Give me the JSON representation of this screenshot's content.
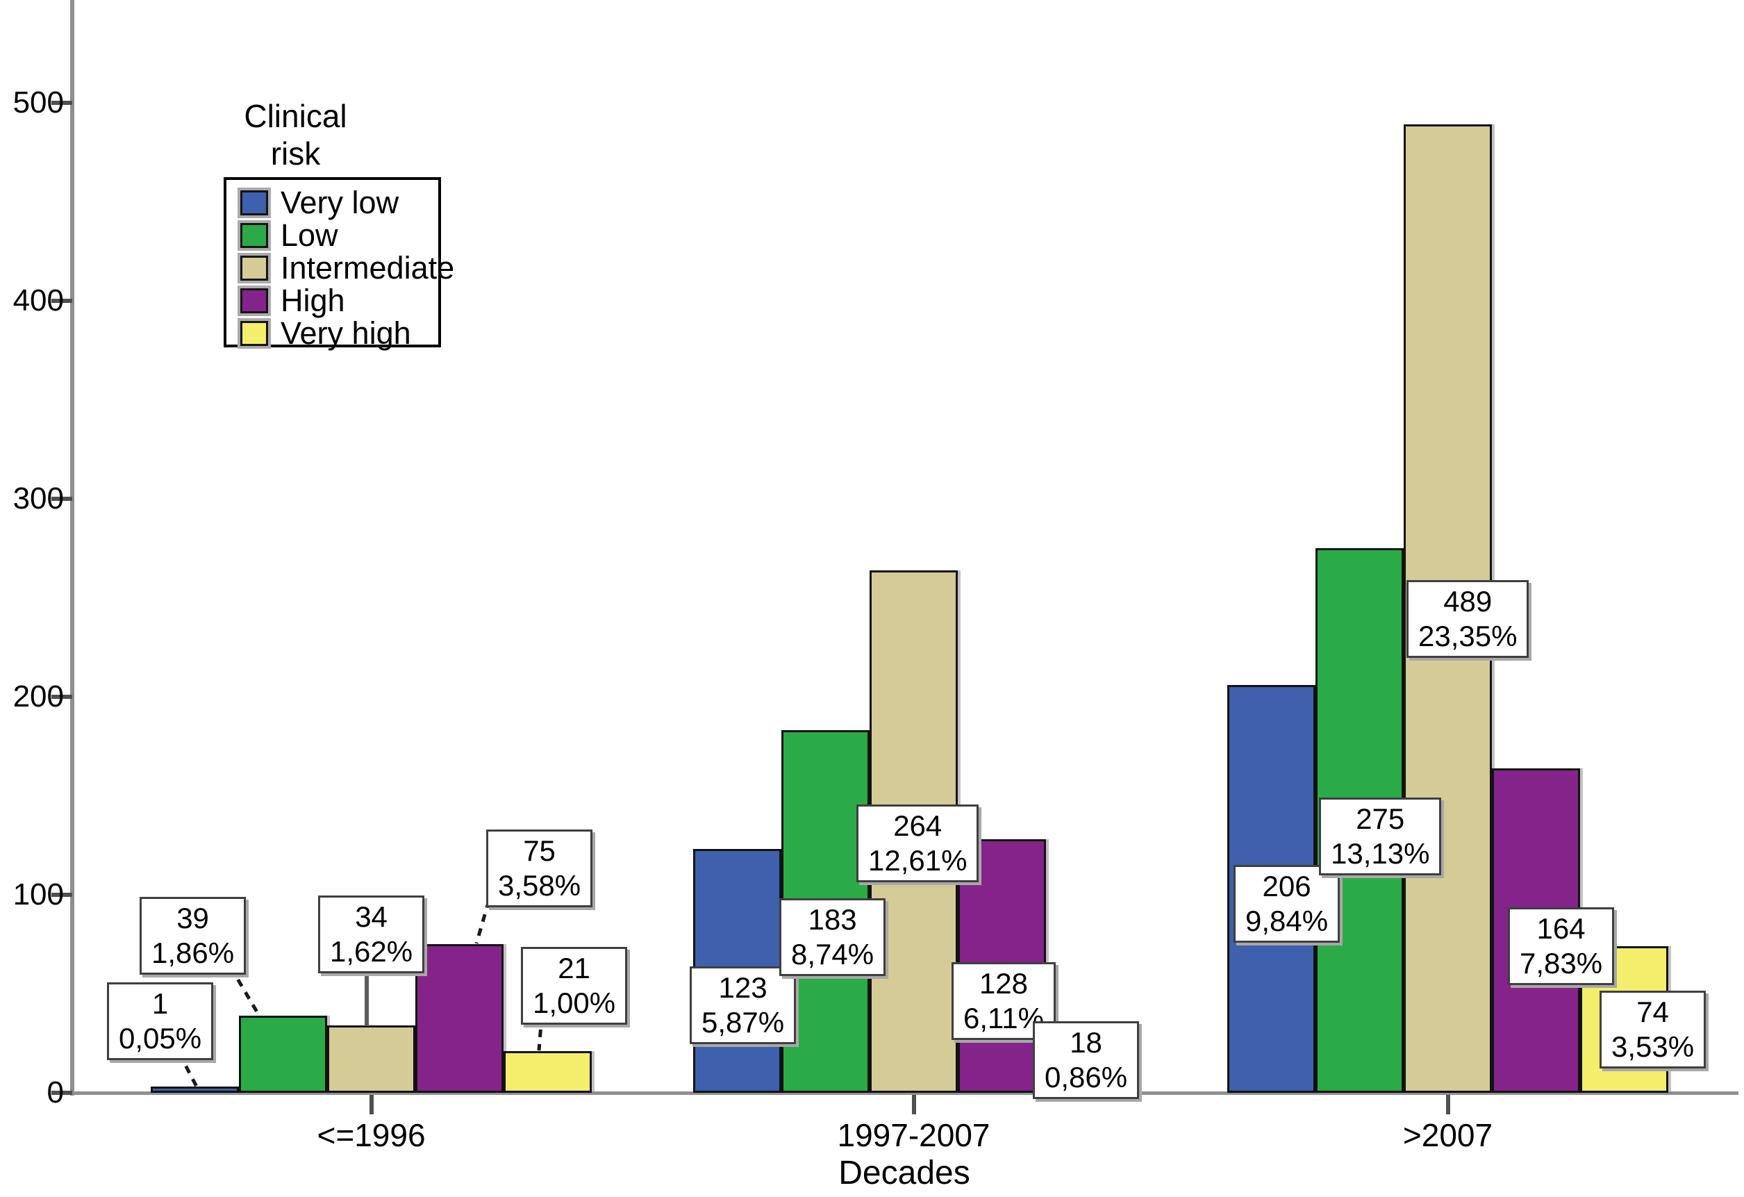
{
  "chart_data": {
    "type": "bar",
    "title": "",
    "xlabel": "Decades",
    "ylabel": "",
    "legend_title": "Clinical risk",
    "legend_position": "upper-left-inside",
    "grid": false,
    "ylim": [
      0,
      550
    ],
    "yticks": [
      0,
      100,
      200,
      300,
      400,
      500
    ],
    "categories": [
      "<=1996",
      "1997-2007",
      ">2007"
    ],
    "series": [
      {
        "name": "Very low",
        "color": "#3f60ad",
        "values": [
          1,
          123,
          206
        ],
        "percent_labels": [
          "0,05%",
          "5,87%",
          "9,84%"
        ]
      },
      {
        "name": "Low",
        "color": "#2bab47",
        "values": [
          39,
          183,
          275
        ],
        "percent_labels": [
          "1,86%",
          "8,74%",
          "13,13%"
        ]
      },
      {
        "name": "Intermediate",
        "color": "#d5cb96",
        "values": [
          34,
          264,
          489
        ],
        "percent_labels": [
          "1,62%",
          "12,61%",
          "23,35%"
        ]
      },
      {
        "name": "High",
        "color": "#84248a",
        "values": [
          75,
          128,
          164
        ],
        "percent_labels": [
          "3,58%",
          "6,11%",
          "7,83%"
        ]
      },
      {
        "name": "Very high",
        "color": "#f4ee6d",
        "values": [
          21,
          18,
          74
        ],
        "percent_labels": [
          "1,00%",
          "0,86%",
          "3,53%"
        ]
      }
    ],
    "colors": {
      "axis": "#8f8f8f",
      "tick": "#4f4f4f",
      "bar_border": "#121212",
      "label_box_bg": "#ffffff",
      "label_box_border": "#3f3f3f",
      "label_box_shadow": "#a8a8a8",
      "text": "#000000"
    }
  }
}
